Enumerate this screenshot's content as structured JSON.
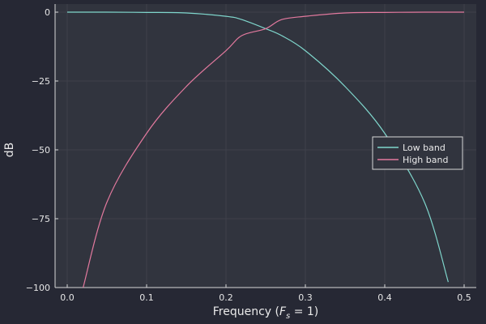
{
  "chart_data": {
    "type": "line",
    "xlabel_prefix": "Frequency (",
    "xlabel_math": "F",
    "xlabel_sub": "s",
    "xlabel_suffix": " = 1)",
    "ylabel": "dB",
    "xlim": [
      0,
      0.5
    ],
    "ylim": [
      -100,
      0
    ],
    "xticks": [
      0.0,
      0.1,
      0.2,
      0.3,
      0.4,
      0.5
    ],
    "xtick_labels": [
      "0.0",
      "0.1",
      "0.2",
      "0.3",
      "0.4",
      "0.5"
    ],
    "yticks": [
      0,
      -25,
      -50,
      -75,
      -100
    ],
    "ytick_labels": [
      "0",
      "−25",
      "−50",
      "−75",
      "−100"
    ],
    "grid": true,
    "legend_position": "right",
    "x": [
      0.0,
      0.02,
      0.05,
      0.1,
      0.15,
      0.2,
      0.22,
      0.25,
      0.27,
      0.3,
      0.35,
      0.4,
      0.45,
      0.48,
      0.5
    ],
    "series": [
      {
        "name": "Low band",
        "color": "#7fd6cc",
        "values": [
          0,
          0,
          0,
          -0.1,
          -0.3,
          -1.5,
          -2.7,
          -6,
          -8.5,
          -14,
          -27,
          -44,
          -69,
          -98,
          null
        ]
      },
      {
        "name": "High band",
        "color": "#e2799e",
        "values": [
          null,
          -100,
          -69,
          -44,
          -27,
          -14,
          -8.5,
          -6,
          -2.7,
          -1.5,
          -0.3,
          -0.1,
          0,
          0,
          0
        ]
      }
    ],
    "colors": {
      "background": "#262834",
      "plot_area": "#31343e",
      "grid": "#3e414b",
      "axis": "#d8d8d8",
      "text": "#e6e6e6"
    }
  }
}
